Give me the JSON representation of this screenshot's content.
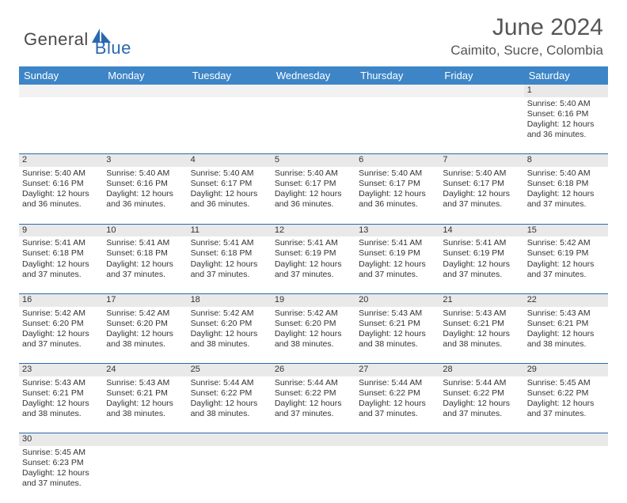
{
  "brand": {
    "part1": "General",
    "part2": "Blue"
  },
  "title": "June 2024",
  "location": "Caimito, Sucre, Colombia",
  "colors": {
    "header_bg": "#3d85c6",
    "header_text": "#ffffff",
    "rule": "#2968b0",
    "daynum_bg": "#e9e9e9",
    "empty_bg": "#f2f2f2",
    "brand_blue": "#2968b0",
    "text": "#333333"
  },
  "dayHeaders": [
    "Sunday",
    "Monday",
    "Tuesday",
    "Wednesday",
    "Thursday",
    "Friday",
    "Saturday"
  ],
  "weeks": [
    [
      null,
      null,
      null,
      null,
      null,
      null,
      {
        "n": 1,
        "sr": "5:40 AM",
        "ss": "6:16 PM",
        "dl": "12 hours and 36 minutes."
      }
    ],
    [
      {
        "n": 2,
        "sr": "5:40 AM",
        "ss": "6:16 PM",
        "dl": "12 hours and 36 minutes."
      },
      {
        "n": 3,
        "sr": "5:40 AM",
        "ss": "6:16 PM",
        "dl": "12 hours and 36 minutes."
      },
      {
        "n": 4,
        "sr": "5:40 AM",
        "ss": "6:17 PM",
        "dl": "12 hours and 36 minutes."
      },
      {
        "n": 5,
        "sr": "5:40 AM",
        "ss": "6:17 PM",
        "dl": "12 hours and 36 minutes."
      },
      {
        "n": 6,
        "sr": "5:40 AM",
        "ss": "6:17 PM",
        "dl": "12 hours and 36 minutes."
      },
      {
        "n": 7,
        "sr": "5:40 AM",
        "ss": "6:17 PM",
        "dl": "12 hours and 37 minutes."
      },
      {
        "n": 8,
        "sr": "5:40 AM",
        "ss": "6:18 PM",
        "dl": "12 hours and 37 minutes."
      }
    ],
    [
      {
        "n": 9,
        "sr": "5:41 AM",
        "ss": "6:18 PM",
        "dl": "12 hours and 37 minutes."
      },
      {
        "n": 10,
        "sr": "5:41 AM",
        "ss": "6:18 PM",
        "dl": "12 hours and 37 minutes."
      },
      {
        "n": 11,
        "sr": "5:41 AM",
        "ss": "6:18 PM",
        "dl": "12 hours and 37 minutes."
      },
      {
        "n": 12,
        "sr": "5:41 AM",
        "ss": "6:19 PM",
        "dl": "12 hours and 37 minutes."
      },
      {
        "n": 13,
        "sr": "5:41 AM",
        "ss": "6:19 PM",
        "dl": "12 hours and 37 minutes."
      },
      {
        "n": 14,
        "sr": "5:41 AM",
        "ss": "6:19 PM",
        "dl": "12 hours and 37 minutes."
      },
      {
        "n": 15,
        "sr": "5:42 AM",
        "ss": "6:19 PM",
        "dl": "12 hours and 37 minutes."
      }
    ],
    [
      {
        "n": 16,
        "sr": "5:42 AM",
        "ss": "6:20 PM",
        "dl": "12 hours and 37 minutes."
      },
      {
        "n": 17,
        "sr": "5:42 AM",
        "ss": "6:20 PM",
        "dl": "12 hours and 38 minutes."
      },
      {
        "n": 18,
        "sr": "5:42 AM",
        "ss": "6:20 PM",
        "dl": "12 hours and 38 minutes."
      },
      {
        "n": 19,
        "sr": "5:42 AM",
        "ss": "6:20 PM",
        "dl": "12 hours and 38 minutes."
      },
      {
        "n": 20,
        "sr": "5:43 AM",
        "ss": "6:21 PM",
        "dl": "12 hours and 38 minutes."
      },
      {
        "n": 21,
        "sr": "5:43 AM",
        "ss": "6:21 PM",
        "dl": "12 hours and 38 minutes."
      },
      {
        "n": 22,
        "sr": "5:43 AM",
        "ss": "6:21 PM",
        "dl": "12 hours and 38 minutes."
      }
    ],
    [
      {
        "n": 23,
        "sr": "5:43 AM",
        "ss": "6:21 PM",
        "dl": "12 hours and 38 minutes."
      },
      {
        "n": 24,
        "sr": "5:43 AM",
        "ss": "6:21 PM",
        "dl": "12 hours and 38 minutes."
      },
      {
        "n": 25,
        "sr": "5:44 AM",
        "ss": "6:22 PM",
        "dl": "12 hours and 38 minutes."
      },
      {
        "n": 26,
        "sr": "5:44 AM",
        "ss": "6:22 PM",
        "dl": "12 hours and 37 minutes."
      },
      {
        "n": 27,
        "sr": "5:44 AM",
        "ss": "6:22 PM",
        "dl": "12 hours and 37 minutes."
      },
      {
        "n": 28,
        "sr": "5:44 AM",
        "ss": "6:22 PM",
        "dl": "12 hours and 37 minutes."
      },
      {
        "n": 29,
        "sr": "5:45 AM",
        "ss": "6:22 PM",
        "dl": "12 hours and 37 minutes."
      }
    ],
    [
      {
        "n": 30,
        "sr": "5:45 AM",
        "ss": "6:23 PM",
        "dl": "12 hours and 37 minutes."
      },
      null,
      null,
      null,
      null,
      null,
      null
    ]
  ],
  "labels": {
    "sunrise": "Sunrise:",
    "sunset": "Sunset:",
    "daylight": "Daylight:"
  }
}
